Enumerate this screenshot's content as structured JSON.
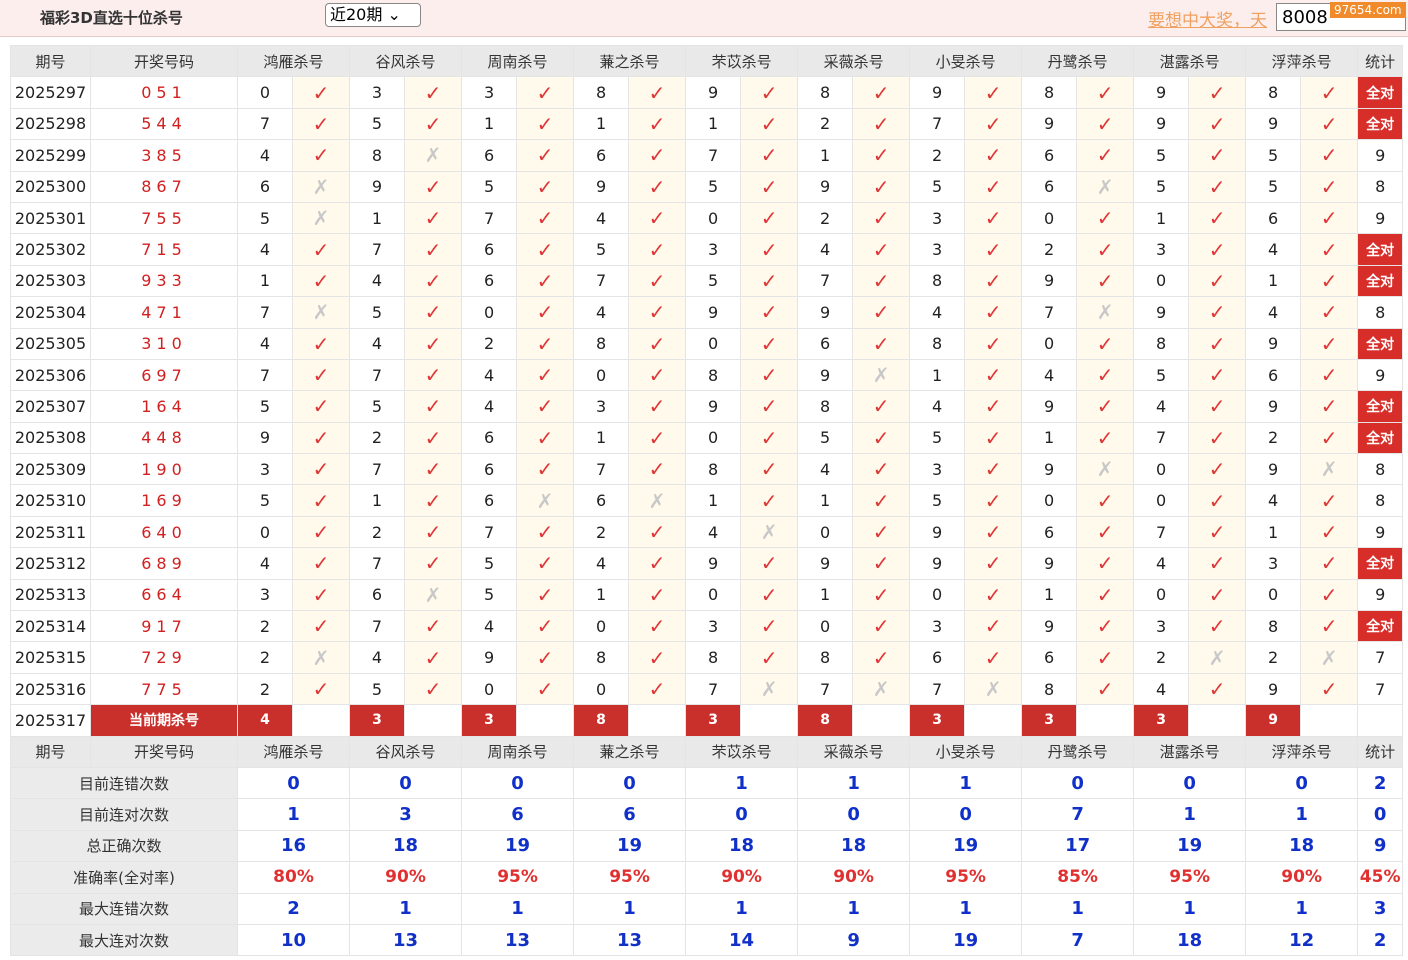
{
  "header": {
    "title": "福彩3D直选十位杀号",
    "period_select": "近20期",
    "notice": "要想中大奖，天",
    "phone": "8008",
    "watermark": "97654.com"
  },
  "table": {
    "columns": [
      "期号",
      "开奖号码",
      "鸿雁杀号",
      "谷风杀号",
      "周南杀号",
      "蒹之杀号",
      "芣苡杀号",
      "采薇杀号",
      "小旻杀号",
      "丹鹭杀号",
      "湛露杀号",
      "浮萍杀号",
      "统计"
    ],
    "rows": [
      {
        "period": "2025297",
        "draw": "051",
        "kills": [
          0,
          3,
          3,
          8,
          9,
          8,
          9,
          8,
          9,
          8
        ],
        "marks": [
          "✓",
          "✓",
          "✓",
          "✓",
          "✓",
          "✓",
          "✓",
          "✓",
          "✓",
          "✓"
        ],
        "stat": "全对"
      },
      {
        "period": "2025298",
        "draw": "544",
        "kills": [
          7,
          5,
          1,
          1,
          1,
          2,
          7,
          9,
          9,
          9
        ],
        "marks": [
          "✓",
          "✓",
          "✓",
          "✓",
          "✓",
          "✓",
          "✓",
          "✓",
          "✓",
          "✓"
        ],
        "stat": "全对"
      },
      {
        "period": "2025299",
        "draw": "385",
        "kills": [
          4,
          8,
          6,
          6,
          7,
          1,
          2,
          6,
          5,
          5
        ],
        "marks": [
          "✓",
          "✗",
          "✓",
          "✓",
          "✓",
          "✓",
          "✓",
          "✓",
          "✓",
          "✓"
        ],
        "stat": 9
      },
      {
        "period": "2025300",
        "draw": "867",
        "kills": [
          6,
          9,
          5,
          9,
          5,
          9,
          5,
          6,
          5,
          5
        ],
        "marks": [
          "✗",
          "✓",
          "✓",
          "✓",
          "✓",
          "✓",
          "✓",
          "✗",
          "✓",
          "✓"
        ],
        "stat": 8
      },
      {
        "period": "2025301",
        "draw": "755",
        "kills": [
          5,
          1,
          7,
          4,
          0,
          2,
          3,
          0,
          1,
          6
        ],
        "marks": [
          "✗",
          "✓",
          "✓",
          "✓",
          "✓",
          "✓",
          "✓",
          "✓",
          "✓",
          "✓"
        ],
        "stat": 9
      },
      {
        "period": "2025302",
        "draw": "715",
        "kills": [
          4,
          7,
          6,
          5,
          3,
          4,
          3,
          2,
          3,
          4
        ],
        "marks": [
          "✓",
          "✓",
          "✓",
          "✓",
          "✓",
          "✓",
          "✓",
          "✓",
          "✓",
          "✓"
        ],
        "stat": "全对"
      },
      {
        "period": "2025303",
        "draw": "933",
        "kills": [
          1,
          4,
          6,
          7,
          5,
          7,
          8,
          9,
          0,
          1
        ],
        "marks": [
          "✓",
          "✓",
          "✓",
          "✓",
          "✓",
          "✓",
          "✓",
          "✓",
          "✓",
          "✓"
        ],
        "stat": "全对"
      },
      {
        "period": "2025304",
        "draw": "471",
        "kills": [
          7,
          5,
          0,
          4,
          9,
          9,
          4,
          7,
          9,
          4
        ],
        "marks": [
          "✗",
          "✓",
          "✓",
          "✓",
          "✓",
          "✓",
          "✓",
          "✗",
          "✓",
          "✓"
        ],
        "stat": 8
      },
      {
        "period": "2025305",
        "draw": "310",
        "kills": [
          4,
          4,
          2,
          8,
          0,
          6,
          8,
          0,
          8,
          9
        ],
        "marks": [
          "✓",
          "✓",
          "✓",
          "✓",
          "✓",
          "✓",
          "✓",
          "✓",
          "✓",
          "✓"
        ],
        "stat": "全对"
      },
      {
        "period": "2025306",
        "draw": "697",
        "kills": [
          7,
          7,
          4,
          0,
          8,
          9,
          1,
          4,
          5,
          6
        ],
        "marks": [
          "✓",
          "✓",
          "✓",
          "✓",
          "✓",
          "✗",
          "✓",
          "✓",
          "✓",
          "✓"
        ],
        "stat": 9
      },
      {
        "period": "2025307",
        "draw": "164",
        "kills": [
          5,
          5,
          4,
          3,
          9,
          8,
          4,
          9,
          4,
          9
        ],
        "marks": [
          "✓",
          "✓",
          "✓",
          "✓",
          "✓",
          "✓",
          "✓",
          "✓",
          "✓",
          "✓"
        ],
        "stat": "全对"
      },
      {
        "period": "2025308",
        "draw": "448",
        "kills": [
          9,
          2,
          6,
          1,
          0,
          5,
          5,
          1,
          7,
          2
        ],
        "marks": [
          "✓",
          "✓",
          "✓",
          "✓",
          "✓",
          "✓",
          "✓",
          "✓",
          "✓",
          "✓"
        ],
        "stat": "全对"
      },
      {
        "period": "2025309",
        "draw": "190",
        "kills": [
          3,
          7,
          6,
          7,
          8,
          4,
          3,
          9,
          0,
          9
        ],
        "marks": [
          "✓",
          "✓",
          "✓",
          "✓",
          "✓",
          "✓",
          "✓",
          "✗",
          "✓",
          "✗"
        ],
        "stat": 8
      },
      {
        "period": "2025310",
        "draw": "169",
        "kills": [
          5,
          1,
          6,
          6,
          1,
          1,
          5,
          0,
          0,
          4
        ],
        "marks": [
          "✓",
          "✓",
          "✗",
          "✗",
          "✓",
          "✓",
          "✓",
          "✓",
          "✓",
          "✓"
        ],
        "stat": 8
      },
      {
        "period": "2025311",
        "draw": "640",
        "kills": [
          0,
          2,
          7,
          2,
          4,
          0,
          9,
          6,
          7,
          1
        ],
        "marks": [
          "✓",
          "✓",
          "✓",
          "✓",
          "✗",
          "✓",
          "✓",
          "✓",
          "✓",
          "✓"
        ],
        "stat": 9
      },
      {
        "period": "2025312",
        "draw": "689",
        "kills": [
          4,
          7,
          5,
          4,
          9,
          9,
          9,
          9,
          4,
          3
        ],
        "marks": [
          "✓",
          "✓",
          "✓",
          "✓",
          "✓",
          "✓",
          "✓",
          "✓",
          "✓",
          "✓"
        ],
        "stat": "全对"
      },
      {
        "period": "2025313",
        "draw": "664",
        "kills": [
          3,
          6,
          5,
          1,
          0,
          1,
          0,
          1,
          0,
          0
        ],
        "marks": [
          "✓",
          "✗",
          "✓",
          "✓",
          "✓",
          "✓",
          "✓",
          "✓",
          "✓",
          "✓"
        ],
        "stat": 9
      },
      {
        "period": "2025314",
        "draw": "917",
        "kills": [
          2,
          7,
          4,
          0,
          3,
          0,
          3,
          9,
          3,
          8
        ],
        "marks": [
          "✓",
          "✓",
          "✓",
          "✓",
          "✓",
          "✓",
          "✓",
          "✓",
          "✓",
          "✓"
        ],
        "stat": "全对"
      },
      {
        "period": "2025315",
        "draw": "729",
        "kills": [
          2,
          4,
          9,
          8,
          8,
          8,
          6,
          6,
          2,
          2
        ],
        "marks": [
          "✗",
          "✓",
          "✓",
          "✓",
          "✓",
          "✓",
          "✓",
          "✓",
          "✗",
          "✗"
        ],
        "stat": 7
      },
      {
        "period": "2025316",
        "draw": "775",
        "kills": [
          2,
          5,
          0,
          0,
          7,
          7,
          7,
          8,
          4,
          9
        ],
        "marks": [
          "✓",
          "✓",
          "✓",
          "✓",
          "✗",
          "✗",
          "✗",
          "✓",
          "✓",
          "✓"
        ],
        "stat": 7
      }
    ],
    "current": {
      "period": "2025317",
      "label": "当前期杀号",
      "kills": [
        4,
        3,
        3,
        8,
        3,
        8,
        3,
        3,
        3,
        9
      ]
    },
    "stats": [
      {
        "label": "目前连错次数",
        "values": [
          0,
          0,
          0,
          0,
          1,
          1,
          1,
          0,
          0,
          0,
          2
        ]
      },
      {
        "label": "目前连对次数",
        "values": [
          1,
          3,
          6,
          6,
          0,
          0,
          0,
          7,
          1,
          1,
          0
        ]
      },
      {
        "label": "总正确次数",
        "values": [
          16,
          18,
          19,
          19,
          18,
          18,
          19,
          17,
          19,
          18,
          9
        ]
      },
      {
        "label": "准确率(全对率)",
        "values": [
          "80%",
          "90%",
          "95%",
          "95%",
          "90%",
          "90%",
          "95%",
          "85%",
          "95%",
          "90%",
          "45%"
        ]
      },
      {
        "label": "最大连错次数",
        "values": [
          2,
          1,
          1,
          1,
          1,
          1,
          1,
          1,
          1,
          1,
          3
        ]
      },
      {
        "label": "最大连对次数",
        "values": [
          10,
          13,
          13,
          13,
          14,
          9,
          19,
          7,
          18,
          12,
          2
        ]
      }
    ]
  }
}
